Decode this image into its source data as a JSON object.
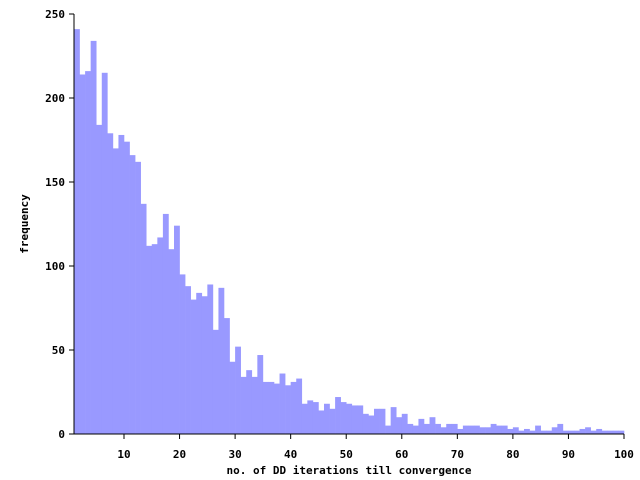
{
  "chart_data": {
    "type": "bar",
    "title": "",
    "xlabel": "no. of DD iterations till convergence",
    "ylabel": "frequency",
    "xlim": [
      1,
      100
    ],
    "ylim": [
      0,
      250
    ],
    "xticks": [
      10,
      20,
      30,
      40,
      50,
      60,
      70,
      80,
      90,
      100
    ],
    "yticks": [
      0,
      50,
      100,
      150,
      200,
      250
    ],
    "bar_color": "#9999ff",
    "grid": false,
    "legend": "none",
    "series": [
      {
        "x": [
          1,
          2,
          3,
          4,
          5,
          6,
          7,
          8,
          9,
          10,
          11,
          12,
          13,
          14,
          15,
          16,
          17,
          18,
          19,
          20,
          21,
          22,
          23,
          24,
          25,
          26,
          27,
          28,
          29,
          30,
          31,
          32,
          33,
          34,
          35,
          36,
          37,
          38,
          39,
          40,
          41,
          42,
          43,
          44,
          45,
          46,
          47,
          48,
          49,
          50,
          51,
          52,
          53,
          54,
          55,
          56,
          57,
          58,
          59,
          60,
          61,
          62,
          63,
          64,
          65,
          66,
          67,
          68,
          69,
          70,
          71,
          72,
          73,
          74,
          75,
          76,
          77,
          78,
          79,
          80,
          81,
          82,
          83,
          84,
          85,
          86,
          87,
          88,
          89,
          90,
          91,
          92,
          93,
          94,
          95,
          96,
          97,
          98,
          99
        ],
        "values": [
          241,
          214,
          216,
          234,
          184,
          215,
          179,
          170,
          178,
          174,
          166,
          162,
          137,
          112,
          113,
          117,
          131,
          110,
          124,
          95,
          88,
          80,
          84,
          82,
          89,
          62,
          87,
          69,
          43,
          52,
          34,
          38,
          34,
          47,
          31,
          31,
          30,
          36,
          29,
          31,
          33,
          18,
          20,
          19,
          14,
          18,
          15,
          22,
          19,
          18,
          17,
          17,
          12,
          11,
          15,
          15,
          5,
          16,
          10,
          12,
          6,
          5,
          9,
          6,
          10,
          6,
          4,
          6,
          6,
          3,
          5,
          5,
          5,
          4,
          4,
          6,
          5,
          5,
          3,
          4,
          2,
          3,
          2,
          5,
          2,
          2,
          4,
          6,
          2,
          2,
          2,
          3,
          4,
          2,
          3,
          2,
          2,
          2,
          2
        ]
      }
    ]
  }
}
